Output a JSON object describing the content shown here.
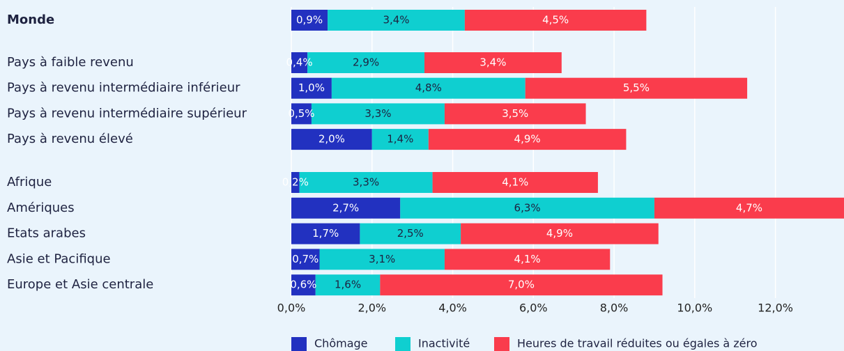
{
  "chart_data": {
    "type": "stacked-bar-horizontal",
    "categories": [
      "Monde",
      "Pays à faible revenu",
      "Pays à revenu intermédiaire inférieur",
      "Pays à revenu intermédiaire supérieur",
      "Pays à revenu élevé",
      "Afrique",
      "Amériques",
      "Etats arabes",
      "Asie et Pacifique",
      "Europe et Asie centrale"
    ],
    "series": [
      {
        "name": "Chômage",
        "color": "#2231c0",
        "values": [
          0.9,
          0.4,
          1.0,
          0.5,
          2.0,
          0.2,
          2.7,
          1.7,
          0.7,
          0.6
        ],
        "value_labels": [
          "0,9%",
          "0,4%",
          "1,0%",
          "0,5%",
          "2,0%",
          "0,2%",
          "2,7%",
          "1,7%",
          "0,7%",
          "0,6%"
        ]
      },
      {
        "name": "Inactivité",
        "color": "#0fcfd0",
        "values": [
          3.4,
          2.9,
          4.8,
          3.3,
          1.4,
          3.3,
          6.3,
          2.5,
          3.1,
          1.6
        ],
        "value_labels": [
          "3,4%",
          "2,9%",
          "4,8%",
          "3,3%",
          "1,4%",
          "3,3%",
          "6,3%",
          "2,5%",
          "3,1%",
          "1,6%"
        ]
      },
      {
        "name": "Heures de travail réduites ou égales à zéro",
        "color": "#fa3c4c",
        "values": [
          4.5,
          3.4,
          5.5,
          3.5,
          4.9,
          4.1,
          4.7,
          4.9,
          4.1,
          7.0
        ],
        "value_labels": [
          "4,5%",
          "3,4%",
          "5,5%",
          "3,5%",
          "4,9%",
          "4,1%",
          "4,7%",
          "4,9%",
          "4,1%",
          "7,0%"
        ]
      }
    ],
    "xlim": [
      0,
      13.7
    ],
    "xticks": [
      {
        "value": 0,
        "label": "0,0%"
      },
      {
        "value": 2,
        "label": "2,0%"
      },
      {
        "value": 4,
        "label": "4,0%"
      },
      {
        "value": 6,
        "label": "6,0%"
      },
      {
        "value": 8,
        "label": "8,0%"
      },
      {
        "value": 10,
        "label": "10,0%"
      },
      {
        "value": 12,
        "label": "12,0%"
      }
    ],
    "grid": true,
    "legend": "bottom"
  }
}
